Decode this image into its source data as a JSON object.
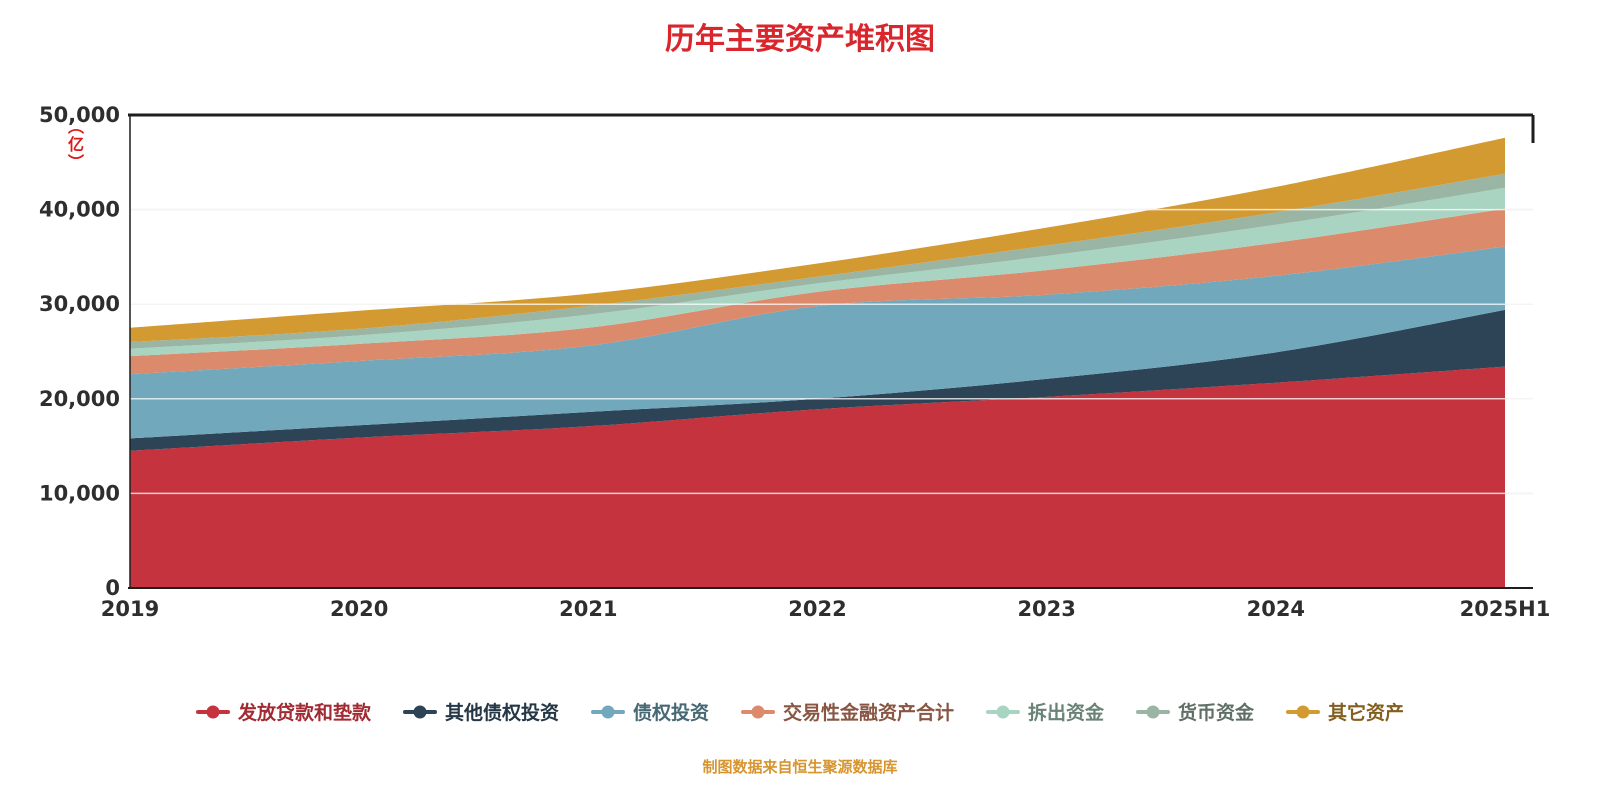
{
  "title": "历年主要资产堆积图",
  "y_axis": {
    "unit_label": "（亿）",
    "ticks": [
      "0",
      "10,000",
      "20,000",
      "30,000",
      "40,000",
      "50,000"
    ]
  },
  "footer": "制图数据来自恒生聚源数据库",
  "colors": {
    "title": "#d8262c",
    "unit_label": "#dd1a1a",
    "footer": "#d7952f",
    "axis_text": "#2e2e2e",
    "axis_line": "#1e1e1e",
    "gridline_under": "#d4d4d4",
    "gridline_over": "rgba(255,255,255,0.75)"
  },
  "chart_data": {
    "type": "area",
    "stacked": true,
    "title": "历年主要资产堆积图",
    "xlabel": "",
    "ylabel": "（亿）",
    "ylim": [
      0,
      50000
    ],
    "grid": true,
    "legend_position": "bottom",
    "categories": [
      "2019",
      "2020",
      "2021",
      "2022",
      "2023",
      "2024",
      "2025H1"
    ],
    "series": [
      {
        "name": "发放贷款和垫款",
        "color": "#c5333e",
        "values": [
          14500,
          15900,
          17100,
          18900,
          20200,
          21700,
          23400
        ]
      },
      {
        "name": "其他债权投资",
        "color": "#2d4356",
        "values": [
          1300,
          1300,
          1500,
          1100,
          1900,
          3200,
          6000
        ]
      },
      {
        "name": "债权投资",
        "color": "#72a8bc",
        "values": [
          6800,
          6800,
          7000,
          9800,
          8900,
          8100,
          6700
        ]
      },
      {
        "name": "交易性金融资产合计",
        "color": "#db8a6c",
        "values": [
          1900,
          1800,
          1900,
          1500,
          2600,
          3500,
          4000
        ]
      },
      {
        "name": "拆出资金",
        "color": "#a9d4c1",
        "values": [
          800,
          900,
          1400,
          900,
          1500,
          1900,
          2200
        ]
      },
      {
        "name": "货币资金",
        "color": "#9bb5a5",
        "values": [
          700,
          700,
          900,
          700,
          1100,
          1300,
          1500
        ]
      },
      {
        "name": "其它资产",
        "color": "#d49a32",
        "values": [
          1500,
          1900,
          1300,
          1400,
          1900,
          2700,
          3800
        ]
      }
    ]
  }
}
